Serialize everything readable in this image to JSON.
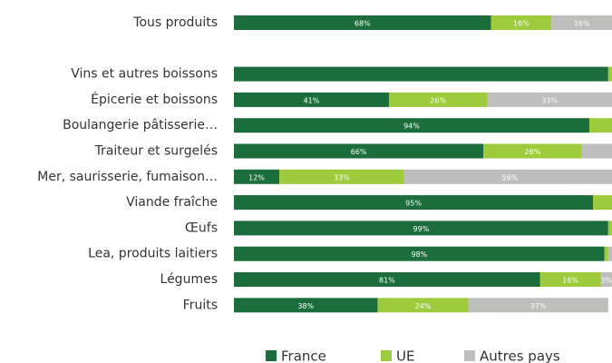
{
  "chart_data": {
    "type": "stacked-bar-horizontal",
    "categories": [
      "Tous produits",
      null,
      "Vins et autres boissons",
      "Épicerie et boissons",
      "Boulangerie pâtisserie…",
      "Traiteur et surgelés",
      "Mer, saurisserie, fumaison…",
      "Viande fraîche",
      "Œufs",
      "Lea, produits laitiers",
      "Légumes",
      "Fruits"
    ],
    "xlim": [
      0,
      100
    ],
    "series": [
      {
        "name": "France",
        "color": "#1b6e3b",
        "values": [
          68,
          null,
          99,
          41,
          94,
          66,
          12,
          95,
          99,
          98,
          81,
          38
        ],
        "value_labels": [
          "68%",
          null,
          null,
          "41%",
          "94%",
          "66%",
          "12%",
          "95%",
          "99%",
          "98%",
          "81%",
          "38%"
        ]
      },
      {
        "name": "UE",
        "color": "#9dcb3b",
        "values": [
          16,
          null,
          1,
          26,
          6,
          26,
          33,
          5,
          1,
          1,
          16,
          24
        ],
        "value_labels": [
          "16%",
          null,
          null,
          "26%",
          null,
          "26%",
          "33%",
          null,
          null,
          null,
          "16%",
          "24%"
        ]
      },
      {
        "name": "Autres pays",
        "color": "#bebebd",
        "values": [
          16,
          null,
          0,
          33,
          0,
          8,
          56,
          0,
          0,
          1,
          3,
          37
        ],
        "value_labels": [
          "16%",
          null,
          null,
          "33%",
          null,
          null,
          "56%",
          null,
          null,
          null,
          "3%",
          "37%"
        ]
      }
    ]
  }
}
